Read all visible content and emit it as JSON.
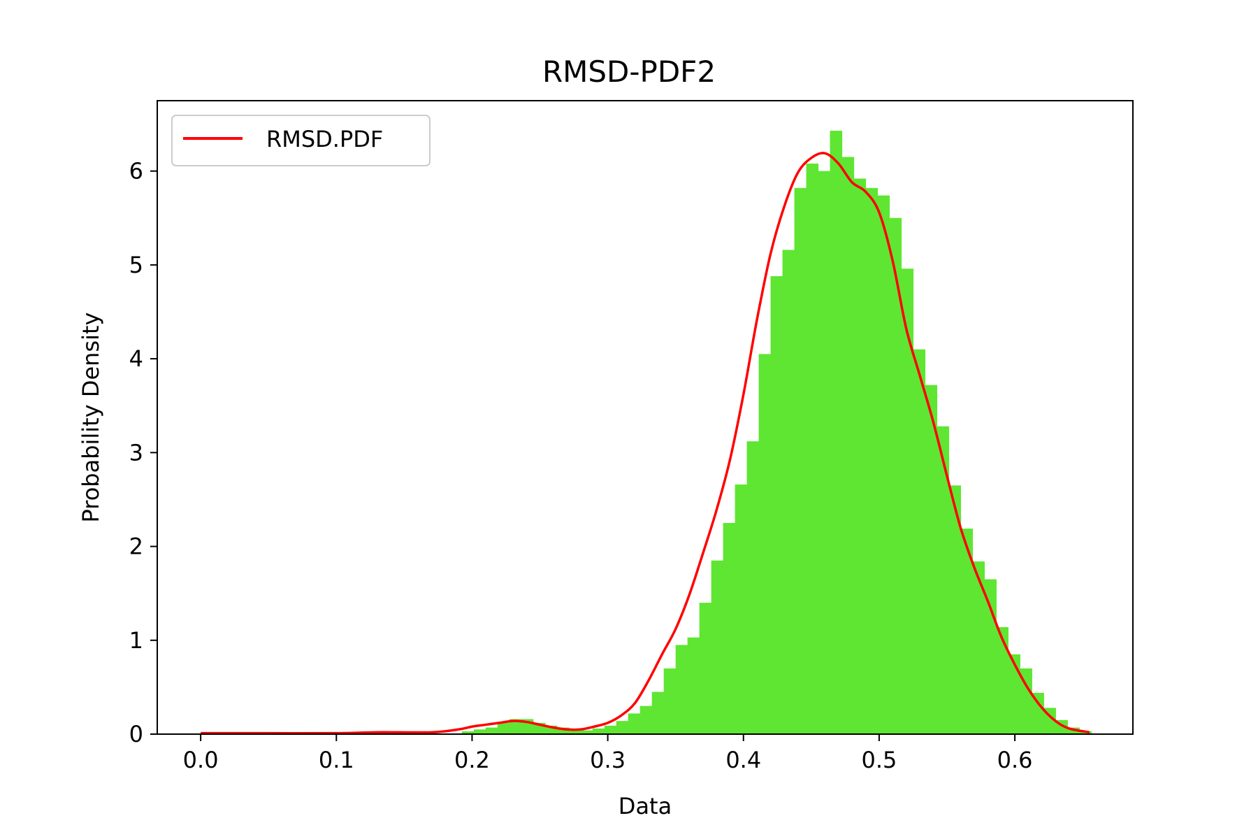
{
  "chart_data": {
    "type": "bar",
    "title": "RMSD-PDF2",
    "xlabel": "Data",
    "ylabel": "Probability Density",
    "xlim": [
      -0.032,
      0.687
    ],
    "ylim": [
      0,
      6.75
    ],
    "xticks": [
      0.0,
      0.1,
      0.2,
      0.3,
      0.4,
      0.5,
      0.6
    ],
    "xtick_labels": [
      "0.0",
      "0.1",
      "0.2",
      "0.3",
      "0.4",
      "0.5",
      "0.6"
    ],
    "yticks": [
      0,
      1,
      2,
      3,
      4,
      5,
      6
    ],
    "ytick_labels": [
      "0",
      "1",
      "2",
      "3",
      "4",
      "5",
      "6"
    ],
    "grid": false,
    "legend": {
      "position": "top-left",
      "entries": [
        {
          "label": "RMSD.PDF",
          "color": "#ff0000"
        }
      ]
    },
    "histogram": {
      "color": "#5ee632",
      "bin_width": 0.00875,
      "bins": [
        {
          "x0": 0.1925,
          "height": 0.03
        },
        {
          "x0": 0.20125,
          "height": 0.05
        },
        {
          "x0": 0.21,
          "height": 0.07
        },
        {
          "x0": 0.21875,
          "height": 0.12
        },
        {
          "x0": 0.2275,
          "height": 0.16
        },
        {
          "x0": 0.23625,
          "height": 0.16
        },
        {
          "x0": 0.245,
          "height": 0.12
        },
        {
          "x0": 0.25375,
          "height": 0.09
        },
        {
          "x0": 0.2625,
          "height": 0.07
        },
        {
          "x0": 0.27125,
          "height": 0.05
        },
        {
          "x0": 0.28,
          "height": 0.04
        },
        {
          "x0": 0.28875,
          "height": 0.06
        },
        {
          "x0": 0.2975,
          "height": 0.09
        },
        {
          "x0": 0.30625,
          "height": 0.14
        },
        {
          "x0": 0.315,
          "height": 0.22
        },
        {
          "x0": 0.32375,
          "height": 0.3
        },
        {
          "x0": 0.3325,
          "height": 0.45
        },
        {
          "x0": 0.34125,
          "height": 0.7
        },
        {
          "x0": 0.35,
          "height": 0.95
        },
        {
          "x0": 0.35875,
          "height": 1.03
        },
        {
          "x0": 0.3675,
          "height": 1.4
        },
        {
          "x0": 0.37625,
          "height": 1.85
        },
        {
          "x0": 0.385,
          "height": 2.25
        },
        {
          "x0": 0.39375,
          "height": 2.66
        },
        {
          "x0": 0.4025,
          "height": 3.12
        },
        {
          "x0": 0.41125,
          "height": 4.05
        },
        {
          "x0": 0.42,
          "height": 4.88
        },
        {
          "x0": 0.42875,
          "height": 5.16
        },
        {
          "x0": 0.4375,
          "height": 5.82
        },
        {
          "x0": 0.44625,
          "height": 6.08
        },
        {
          "x0": 0.455,
          "height": 6.0
        },
        {
          "x0": 0.46375,
          "height": 6.43
        },
        {
          "x0": 0.4725,
          "height": 6.15
        },
        {
          "x0": 0.48125,
          "height": 5.92
        },
        {
          "x0": 0.49,
          "height": 5.82
        },
        {
          "x0": 0.49875,
          "height": 5.74
        },
        {
          "x0": 0.5075,
          "height": 5.5
        },
        {
          "x0": 0.51625,
          "height": 4.96
        },
        {
          "x0": 0.525,
          "height": 4.1
        },
        {
          "x0": 0.53375,
          "height": 3.72
        },
        {
          "x0": 0.5425,
          "height": 3.28
        },
        {
          "x0": 0.55125,
          "height": 2.65
        },
        {
          "x0": 0.56,
          "height": 2.19
        },
        {
          "x0": 0.56875,
          "height": 1.84
        },
        {
          "x0": 0.5775,
          "height": 1.65
        },
        {
          "x0": 0.58625,
          "height": 1.14
        },
        {
          "x0": 0.595,
          "height": 0.85
        },
        {
          "x0": 0.60375,
          "height": 0.7
        },
        {
          "x0": 0.6125,
          "height": 0.44
        },
        {
          "x0": 0.62125,
          "height": 0.28
        },
        {
          "x0": 0.63,
          "height": 0.15
        },
        {
          "x0": 0.63875,
          "height": 0.07
        },
        {
          "x0": 0.6475,
          "height": 0.03
        }
      ]
    },
    "series": [
      {
        "name": "RMSD.PDF",
        "type": "line",
        "color": "#ff0000",
        "x": [
          0.0,
          0.05,
          0.1,
          0.13,
          0.17,
          0.19,
          0.2,
          0.21,
          0.22,
          0.23,
          0.24,
          0.25,
          0.26,
          0.27,
          0.28,
          0.29,
          0.3,
          0.31,
          0.32,
          0.33,
          0.34,
          0.35,
          0.36,
          0.37,
          0.38,
          0.39,
          0.4,
          0.41,
          0.42,
          0.43,
          0.44,
          0.45,
          0.46,
          0.47,
          0.48,
          0.49,
          0.5,
          0.51,
          0.52,
          0.53,
          0.54,
          0.55,
          0.56,
          0.57,
          0.58,
          0.59,
          0.6,
          0.61,
          0.62,
          0.63,
          0.64,
          0.655
        ],
        "y": [
          0.01,
          0.01,
          0.01,
          0.02,
          0.02,
          0.05,
          0.08,
          0.1,
          0.12,
          0.14,
          0.13,
          0.1,
          0.07,
          0.05,
          0.05,
          0.08,
          0.12,
          0.2,
          0.33,
          0.57,
          0.85,
          1.12,
          1.48,
          1.92,
          2.38,
          2.92,
          3.62,
          4.42,
          5.12,
          5.62,
          5.98,
          6.14,
          6.19,
          6.08,
          5.88,
          5.78,
          5.56,
          5.04,
          4.32,
          3.82,
          3.32,
          2.75,
          2.2,
          1.78,
          1.42,
          1.04,
          0.74,
          0.48,
          0.28,
          0.14,
          0.06,
          0.02
        ]
      }
    ]
  }
}
